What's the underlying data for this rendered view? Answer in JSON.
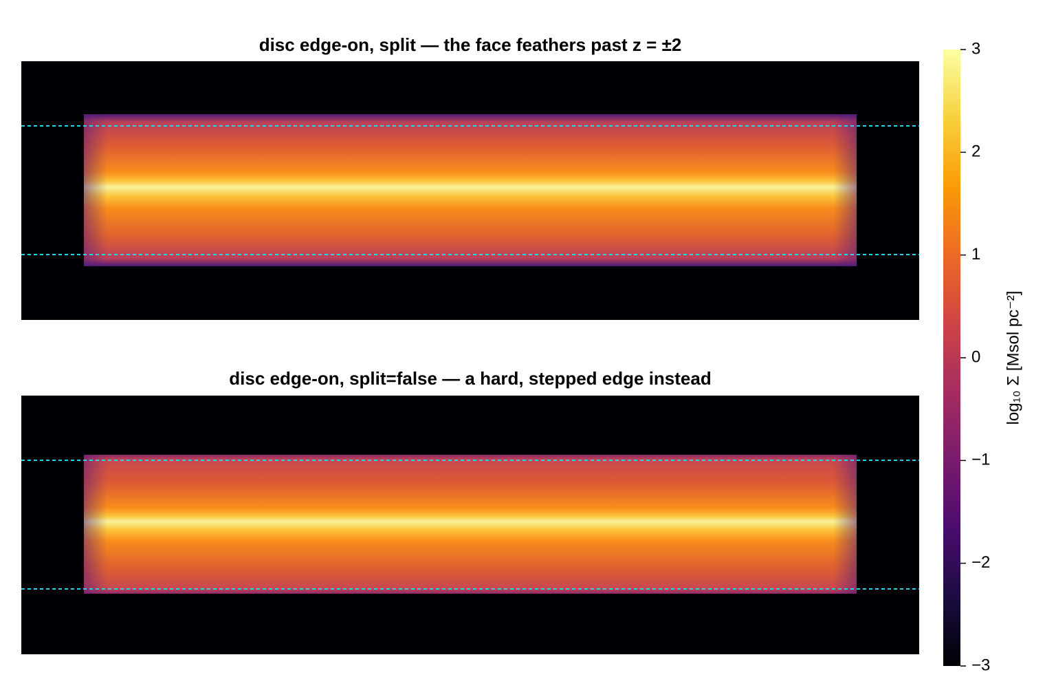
{
  "chart_data": [
    {
      "type": "heatmap",
      "title": "disc edge-on, split — the face feathers past z = ±2"
    },
    {
      "type": "heatmap",
      "title": "disc edge-on, split=false — a hard, stepped edge instead"
    }
  ],
  "colorbar": {
    "label": "log₁₀ Σ  [Msol pc⁻²]",
    "colormap": "inferno",
    "clim": [
      -3,
      3
    ],
    "ticks": [
      {
        "value": -3,
        "label": "−3"
      },
      {
        "value": -2,
        "label": "−2"
      },
      {
        "value": -1,
        "label": "−1"
      },
      0,
      1,
      2,
      3
    ]
  }
}
